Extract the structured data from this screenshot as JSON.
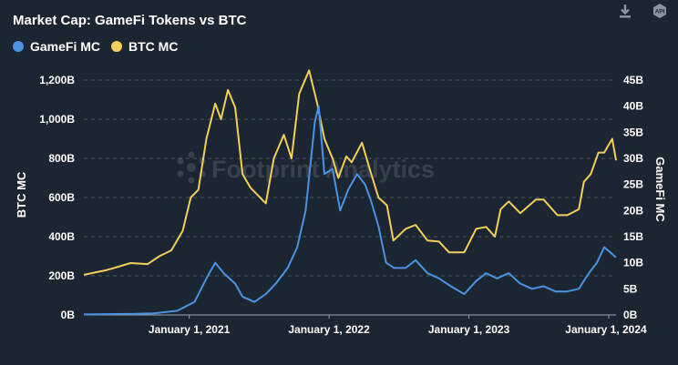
{
  "header": {
    "title": "Market Cap: GameFi Tokens vs BTC"
  },
  "toolbar": {
    "download_icon": "download-icon",
    "api_icon": "api-icon",
    "api_label": "API"
  },
  "watermark": "Footprint Analytics",
  "chart_data": {
    "type": "line",
    "title": "Market Cap: GameFi Tokens vs BTC",
    "xlabel": "",
    "x_ticks": [
      "January 1, 2021",
      "January 1, 2022",
      "January 1, 2023",
      "January 1, 2024"
    ],
    "y_left": {
      "label": "BTC MC",
      "ticks": [
        "0B",
        "200B",
        "400B",
        "600B",
        "800B",
        "1,000B",
        "1,200B"
      ],
      "range": [
        0,
        1200
      ]
    },
    "y_right": {
      "label": "GameFi MC",
      "ticks": [
        "0B",
        "5B",
        "10B",
        "15B",
        "20B",
        "25B",
        "30B",
        "35B",
        "40B",
        "45B"
      ],
      "range": [
        0,
        45
      ]
    },
    "x_range": [
      "2020-04-01",
      "2024-01-20"
    ],
    "grid": true,
    "legend_position": "top-left",
    "series": [
      {
        "name": "GameFi MC",
        "axis": "right",
        "color": "#4b93e2",
        "points": [
          [
            "2020-04-01",
            0.1
          ],
          [
            "2020-06-01",
            0.15
          ],
          [
            "2020-08-01",
            0.2
          ],
          [
            "2020-10-01",
            0.3
          ],
          [
            "2020-12-01",
            0.8
          ],
          [
            "2021-01-15",
            2.5
          ],
          [
            "2021-02-15",
            7
          ],
          [
            "2021-03-10",
            10
          ],
          [
            "2021-04-01",
            8
          ],
          [
            "2021-05-01",
            6
          ],
          [
            "2021-05-20",
            3.5
          ],
          [
            "2021-06-20",
            2.5
          ],
          [
            "2021-07-20",
            4
          ],
          [
            "2021-08-15",
            6
          ],
          [
            "2021-09-15",
            9
          ],
          [
            "2021-10-10",
            13
          ],
          [
            "2021-11-01",
            20
          ],
          [
            "2021-11-25",
            37
          ],
          [
            "2021-12-05",
            40
          ],
          [
            "2021-12-20",
            27
          ],
          [
            "2022-01-10",
            28
          ],
          [
            "2022-01-30",
            20
          ],
          [
            "2022-02-20",
            24
          ],
          [
            "2022-03-15",
            27
          ],
          [
            "2022-04-05",
            25
          ],
          [
            "2022-04-20",
            22
          ],
          [
            "2022-05-10",
            17
          ],
          [
            "2022-05-30",
            10
          ],
          [
            "2022-06-20",
            9
          ],
          [
            "2022-07-20",
            9
          ],
          [
            "2022-08-15",
            10.5
          ],
          [
            "2022-09-15",
            8
          ],
          [
            "2022-10-15",
            7
          ],
          [
            "2022-11-15",
            5.5
          ],
          [
            "2022-12-20",
            4
          ],
          [
            "2023-01-20",
            6.5
          ],
          [
            "2023-02-15",
            8
          ],
          [
            "2023-03-15",
            7
          ],
          [
            "2023-04-15",
            8
          ],
          [
            "2023-05-15",
            6
          ],
          [
            "2023-06-15",
            5
          ],
          [
            "2023-07-15",
            5.5
          ],
          [
            "2023-08-15",
            4.5
          ],
          [
            "2023-09-15",
            4.5
          ],
          [
            "2023-10-15",
            5
          ],
          [
            "2023-11-10",
            8
          ],
          [
            "2023-12-01",
            10
          ],
          [
            "2023-12-20",
            13
          ],
          [
            "2024-01-05",
            12
          ],
          [
            "2024-01-20",
            11
          ]
        ]
      },
      {
        "name": "BTC MC",
        "axis": "left",
        "color": "#f2cf5b",
        "points": [
          [
            "2020-04-01",
            205
          ],
          [
            "2020-06-01",
            230
          ],
          [
            "2020-08-01",
            265
          ],
          [
            "2020-09-15",
            260
          ],
          [
            "2020-10-15",
            300
          ],
          [
            "2020-11-15",
            330
          ],
          [
            "2020-12-15",
            430
          ],
          [
            "2021-01-05",
            600
          ],
          [
            "2021-01-25",
            640
          ],
          [
            "2021-02-15",
            900
          ],
          [
            "2021-03-10",
            1080
          ],
          [
            "2021-03-25",
            1000
          ],
          [
            "2021-04-12",
            1150
          ],
          [
            "2021-05-01",
            1060
          ],
          [
            "2021-05-20",
            720
          ],
          [
            "2021-06-10",
            650
          ],
          [
            "2021-06-25",
            620
          ],
          [
            "2021-07-20",
            570
          ],
          [
            "2021-08-10",
            800
          ],
          [
            "2021-09-05",
            920
          ],
          [
            "2021-09-25",
            800
          ],
          [
            "2021-10-15",
            1130
          ],
          [
            "2021-11-10",
            1250
          ],
          [
            "2021-12-01",
            1080
          ],
          [
            "2021-12-20",
            900
          ],
          [
            "2022-01-10",
            800
          ],
          [
            "2022-01-25",
            700
          ],
          [
            "2022-02-15",
            810
          ],
          [
            "2022-03-01",
            780
          ],
          [
            "2022-03-28",
            880
          ],
          [
            "2022-04-15",
            760
          ],
          [
            "2022-05-10",
            600
          ],
          [
            "2022-06-01",
            560
          ],
          [
            "2022-06-18",
            380
          ],
          [
            "2022-07-20",
            440
          ],
          [
            "2022-08-15",
            460
          ],
          [
            "2022-09-15",
            380
          ],
          [
            "2022-10-15",
            375
          ],
          [
            "2022-11-10",
            320
          ],
          [
            "2022-12-20",
            320
          ],
          [
            "2023-01-20",
            440
          ],
          [
            "2023-02-15",
            450
          ],
          [
            "2023-03-10",
            400
          ],
          [
            "2023-03-25",
            540
          ],
          [
            "2023-04-15",
            580
          ],
          [
            "2023-05-15",
            520
          ],
          [
            "2023-06-25",
            590
          ],
          [
            "2023-07-15",
            590
          ],
          [
            "2023-08-20",
            510
          ],
          [
            "2023-09-15",
            510
          ],
          [
            "2023-10-15",
            540
          ],
          [
            "2023-10-28",
            680
          ],
          [
            "2023-11-15",
            720
          ],
          [
            "2023-12-05",
            830
          ],
          [
            "2023-12-20",
            830
          ],
          [
            "2024-01-10",
            900
          ],
          [
            "2024-01-20",
            790
          ]
        ]
      }
    ]
  }
}
